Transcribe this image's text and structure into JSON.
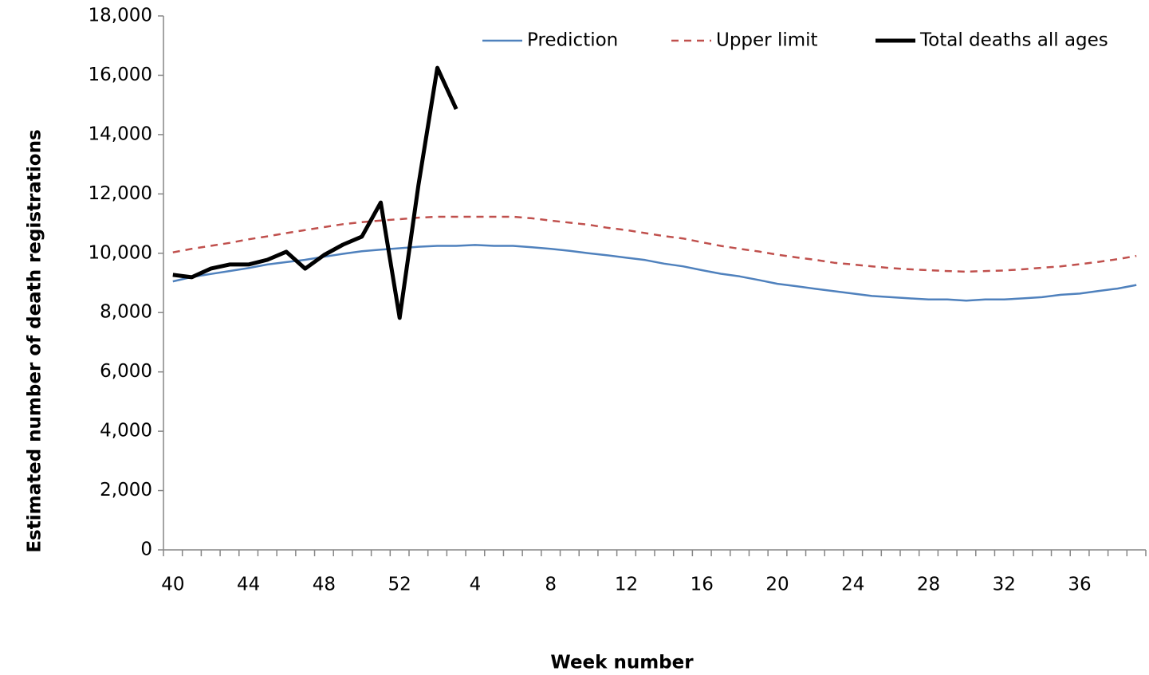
{
  "chart_data": {
    "type": "line",
    "x_label": "Week number",
    "y_label": "Estimated number of death registrations",
    "categories": [
      "40",
      null,
      null,
      null,
      "44",
      null,
      null,
      null,
      "48",
      null,
      null,
      null,
      "52",
      null,
      null,
      null,
      "4",
      null,
      null,
      null,
      "8",
      null,
      null,
      null,
      "12",
      null,
      null,
      null,
      "16",
      null,
      null,
      null,
      "20",
      null,
      null,
      null,
      "24",
      null,
      null,
      null,
      "28",
      null,
      null,
      null,
      "32",
      null,
      null,
      null,
      "36",
      null,
      null,
      null
    ],
    "series": [
      {
        "name": "Prediction",
        "color": "#4f81bd",
        "dash": false,
        "width": 2.5,
        "values": [
          9050,
          9200,
          9300,
          9400,
          9500,
          9620,
          9700,
          9780,
          9880,
          9980,
          10070,
          10120,
          10170,
          10220,
          10250,
          10250,
          10280,
          10250,
          10250,
          10200,
          10150,
          10080,
          10000,
          9930,
          9850,
          9770,
          9650,
          9560,
          9430,
          9310,
          9220,
          9100,
          8970,
          8890,
          8800,
          8720,
          8640,
          8560,
          8520,
          8480,
          8440,
          8440,
          8400,
          8440,
          8440,
          8480,
          8520,
          8600,
          8640,
          8730,
          8810,
          8930
        ]
      },
      {
        "name": "Upper limit",
        "color": "#c0504d",
        "dash": true,
        "width": 2.5,
        "values": [
          10030,
          10150,
          10250,
          10350,
          10470,
          10570,
          10680,
          10780,
          10880,
          10980,
          11050,
          11100,
          11150,
          11200,
          11230,
          11230,
          11230,
          11230,
          11230,
          11180,
          11100,
          11030,
          10960,
          10860,
          10780,
          10680,
          10580,
          10500,
          10370,
          10250,
          10150,
          10060,
          9950,
          9860,
          9780,
          9680,
          9620,
          9560,
          9500,
          9460,
          9430,
          9400,
          9380,
          9400,
          9420,
          9460,
          9510,
          9560,
          9630,
          9710,
          9800,
          9910
        ]
      },
      {
        "name": "Total deaths all ages",
        "color": "#000000",
        "dash": false,
        "width": 5,
        "values": [
          9270,
          9190,
          9480,
          9620,
          9620,
          9780,
          10050,
          9480,
          9940,
          10290,
          10560,
          11710,
          7820,
          12300,
          16250,
          14860,
          null,
          null,
          null,
          null,
          null,
          null,
          null,
          null,
          null,
          null,
          null,
          null,
          null,
          null,
          null,
          null,
          null,
          null,
          null,
          null,
          null,
          null,
          null,
          null,
          null,
          null,
          null,
          null,
          null,
          null,
          null,
          null,
          null,
          null,
          null,
          null
        ]
      }
    ],
    "ylim": [
      0,
      18000
    ],
    "yticks": [
      0,
      {
        "value": 2000,
        "label": "2,000"
      },
      {
        "value": 4000,
        "label": "4,000"
      },
      {
        "value": 6000,
        "label": "6,000"
      },
      {
        "value": 8000,
        "label": "8,000"
      },
      {
        "value": 10000,
        "label": "10,000"
      },
      {
        "value": 12000,
        "label": "12,000"
      },
      {
        "value": 14000,
        "label": "14,000"
      },
      {
        "value": 16000,
        "label": "16,000"
      },
      {
        "value": 18000,
        "label": "18,000"
      }
    ],
    "legend": "top-right",
    "grid": false
  }
}
